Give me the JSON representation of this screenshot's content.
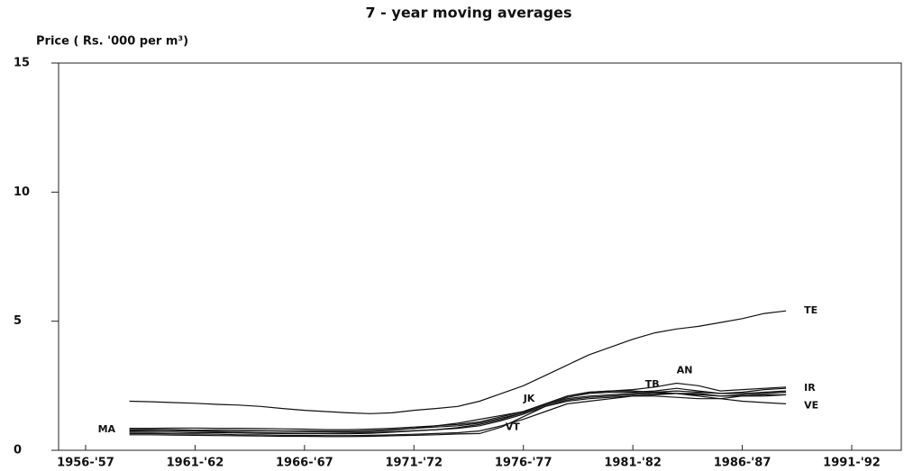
{
  "chart_data": {
    "type": "line",
    "title": "7 - year moving averages",
    "y_label": "Price ( Rs. '000 per m³)",
    "categories": [
      "1956-'57",
      null,
      null,
      null,
      null,
      "1961-'62",
      null,
      null,
      null,
      null,
      "1966-'67",
      null,
      null,
      null,
      null,
      "1971-'72",
      null,
      null,
      null,
      null,
      "1976-'77",
      null,
      null,
      null,
      null,
      "1981-'82",
      null,
      null,
      null,
      null,
      "1986-'87",
      null,
      null,
      null,
      null,
      "1991-'92"
    ],
    "ylim": [
      0,
      15
    ],
    "yticks": [
      0,
      5,
      10,
      15
    ],
    "color": "#111111",
    "series": [
      {
        "name": "TE",
        "values": [
          null,
          null,
          1.9,
          1.88,
          1.85,
          1.82,
          1.78,
          1.75,
          1.7,
          1.62,
          1.55,
          1.5,
          1.45,
          1.42,
          1.45,
          1.55,
          1.62,
          1.7,
          1.9,
          2.2,
          2.5,
          2.9,
          3.3,
          3.7,
          4.0,
          4.3,
          4.55,
          4.7,
          4.8,
          4.95,
          5.1,
          5.3,
          5.4,
          null,
          null,
          null
        ]
      },
      {
        "name": "AN",
        "values": [
          null,
          null,
          0.85,
          0.85,
          0.86,
          0.86,
          0.85,
          0.85,
          0.84,
          0.83,
          0.82,
          0.8,
          0.8,
          0.82,
          0.85,
          0.9,
          0.95,
          1.0,
          1.1,
          1.3,
          1.5,
          1.8,
          2.1,
          2.25,
          2.3,
          2.35,
          2.45,
          2.6,
          2.5,
          2.3,
          2.35,
          2.4,
          2.45,
          null,
          null,
          null
        ]
      },
      {
        "name": "IR",
        "values": [
          null,
          null,
          0.8,
          0.8,
          0.8,
          0.78,
          0.78,
          0.77,
          0.76,
          0.75,
          0.75,
          0.74,
          0.74,
          0.76,
          0.8,
          0.85,
          0.9,
          0.95,
          1.05,
          1.25,
          1.45,
          1.75,
          2.05,
          2.2,
          2.25,
          2.25,
          2.3,
          2.4,
          2.3,
          2.2,
          2.25,
          2.35,
          2.4,
          null,
          null,
          null
        ]
      },
      {
        "name": "VE",
        "values": [
          null,
          null,
          0.7,
          0.7,
          0.7,
          0.68,
          0.68,
          0.67,
          0.66,
          0.65,
          0.65,
          0.64,
          0.64,
          0.66,
          0.7,
          0.75,
          0.8,
          0.85,
          0.95,
          1.15,
          1.4,
          1.7,
          1.95,
          2.05,
          2.1,
          2.15,
          2.2,
          2.2,
          2.1,
          2.0,
          1.9,
          1.85,
          1.8,
          null,
          null,
          null
        ]
      },
      {
        "name": "TB",
        "values": [
          null,
          null,
          0.65,
          0.65,
          0.64,
          0.63,
          0.62,
          0.6,
          0.6,
          0.58,
          0.58,
          0.57,
          0.57,
          0.58,
          0.6,
          0.62,
          0.65,
          0.68,
          0.75,
          0.95,
          1.2,
          1.5,
          1.8,
          1.9,
          2.0,
          2.1,
          2.1,
          2.05,
          2.0,
          2.0,
          2.1,
          2.1,
          2.15,
          null,
          null,
          null
        ]
      },
      {
        "name": "JK",
        "values": [
          null,
          null,
          0.75,
          0.76,
          0.77,
          0.78,
          0.77,
          0.76,
          0.75,
          0.74,
          0.73,
          0.72,
          0.72,
          0.74,
          0.78,
          0.85,
          0.95,
          1.05,
          1.2,
          1.35,
          1.5,
          1.8,
          2.1,
          2.25,
          2.3,
          2.3,
          2.25,
          2.2,
          2.15,
          2.1,
          2.15,
          2.2,
          2.25,
          null,
          null,
          null
        ]
      },
      {
        "name": "VT",
        "values": [
          null,
          null,
          0.6,
          0.6,
          0.59,
          0.58,
          0.57,
          0.56,
          0.55,
          0.54,
          0.54,
          0.53,
          0.53,
          0.54,
          0.56,
          0.58,
          0.6,
          0.63,
          0.65,
          0.9,
          1.3,
          1.7,
          1.9,
          2.0,
          2.05,
          2.1,
          2.15,
          2.2,
          2.2,
          2.1,
          2.1,
          2.15,
          2.15,
          null,
          null,
          null
        ]
      },
      {
        "name": "MA",
        "values": [
          null,
          null,
          0.8,
          0.78,
          0.76,
          0.74,
          0.72,
          0.7,
          0.68,
          0.67,
          0.66,
          0.66,
          0.67,
          0.69,
          0.72,
          0.76,
          0.8,
          0.88,
          1.0,
          1.2,
          1.45,
          1.75,
          2.0,
          2.1,
          2.15,
          2.2,
          2.25,
          2.3,
          2.25,
          2.2,
          2.2,
          2.25,
          2.3,
          null,
          null,
          null
        ]
      }
    ]
  }
}
